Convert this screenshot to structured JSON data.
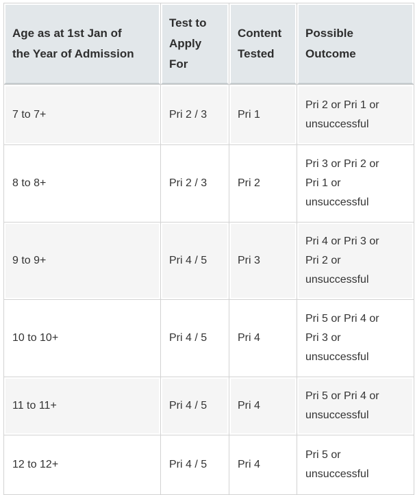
{
  "table": {
    "columns": {
      "age": "Age as at 1st Jan of\nthe Year of Admission",
      "test": "Test to\nApply\nFor",
      "content": "Content\nTested",
      "outcome": "Possible\nOutcome"
    },
    "rows": [
      {
        "age": "7 to 7+",
        "test": "Pri 2 / 3",
        "content": "Pri 1",
        "outcome": "Pri 2 or Pri 1 or\nunsuccessful"
      },
      {
        "age": "8 to 8+",
        "test": "Pri 2 / 3",
        "content": "Pri 2",
        "outcome": "Pri 3 or Pri 2 or\nPri 1 or\nunsuccessful"
      },
      {
        "age": "9 to 9+",
        "test": "Pri 4 / 5",
        "content": "Pri 3",
        "outcome": "Pri 4 or Pri 3 or\nPri 2 or\nunsuccessful"
      },
      {
        "age": "10 to 10+",
        "test": "Pri 4 / 5",
        "content": "Pri 4",
        "outcome": "Pri 5 or Pri 4 or\nPri 3 or\nunsuccessful"
      },
      {
        "age": "11 to 11+",
        "test": "Pri 4 / 5",
        "content": "Pri 4",
        "outcome": "Pri 5 or Pri 4 or\nunsuccessful"
      },
      {
        "age": "12 to 12+",
        "test": "Pri 4 / 5",
        "content": "Pri 4",
        "outcome": "Pri 5 or\nunsuccessful"
      }
    ],
    "colors": {
      "header_bg": "#e2e7ea",
      "header_rule": "#c5cbce",
      "row_alt_bg": "#f5f5f5",
      "row_bg": "#ffffff",
      "grid": "#d2d2d2",
      "text": "#333333"
    }
  }
}
